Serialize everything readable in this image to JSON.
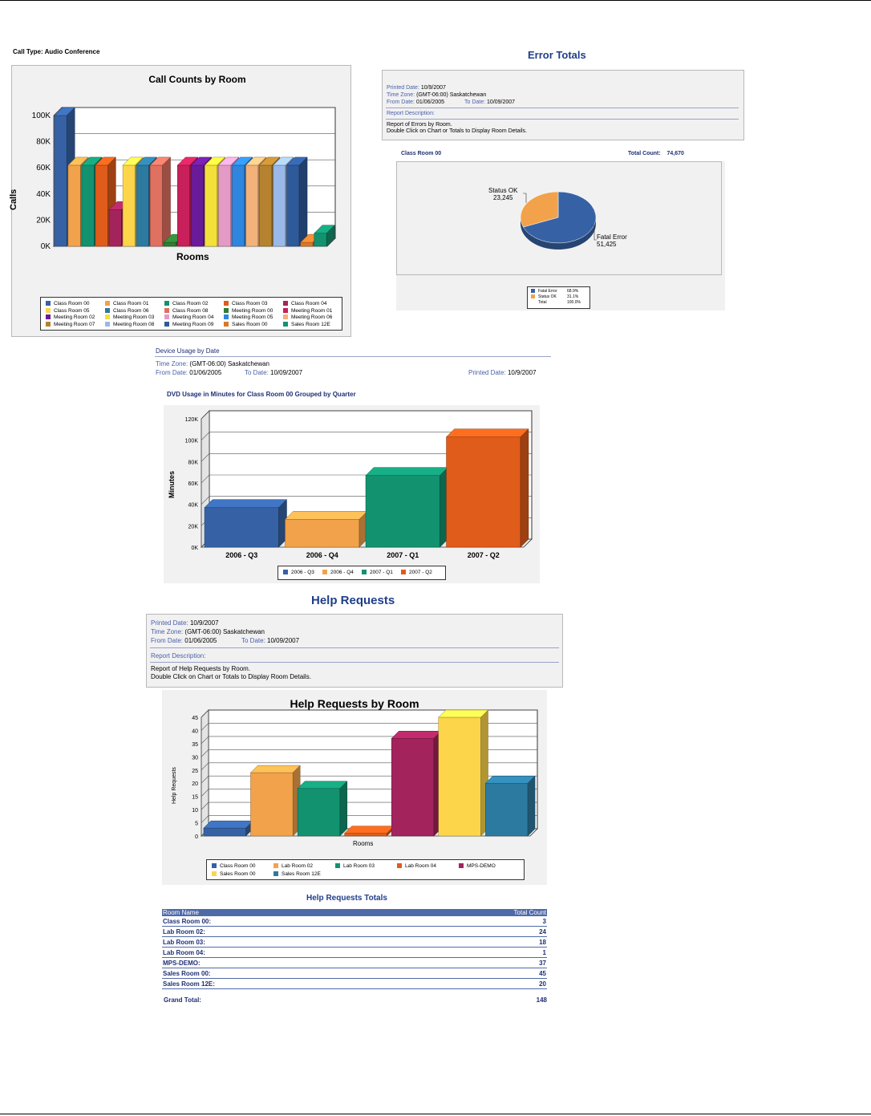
{
  "call_type_label": "Call Type: Audio Conference",
  "chart1": {
    "title": "Call Counts by Room",
    "ylabel": "Calls",
    "xlabel": "Rooms",
    "ticks": [
      "100K",
      "80K",
      "60K",
      "40K",
      "20K",
      "0K"
    ],
    "legend": [
      "Class Room 00",
      "Class Room 01",
      "Class Room 02",
      "Class Room 03",
      "Class Room 04",
      "Class Room 05",
      "Class Room 06",
      "Class Room 08",
      "Meeting Room 00",
      "Meeting Room 01",
      "Meeting Room 02",
      "Meeting Room 03",
      "Meeting Room 04",
      "Meeting Room 05",
      "Meeting Room 06",
      "Meeting Room 07",
      "Meeting Room 08",
      "Meeting Room 09",
      "Sales Room 00",
      "Sales Room 12E"
    ]
  },
  "error_totals": {
    "title": "Error Totals",
    "printed_date_label": "Printed Date:",
    "printed_date": "10/9/2007",
    "time_zone_label": "Time Zone:",
    "time_zone": "(GMT-06:00) Saskatchewan",
    "from_date_label": "From Date:",
    "from_date": "01/06/2005",
    "to_date_label": "To Date:",
    "to_date": "10/09/2007",
    "report_desc_label": "Report Description:",
    "desc1": "Report of Errors by Room.",
    "desc2": "Double Click on Chart or Totals to Display Room Details.",
    "room_label": "Class Room 00",
    "total_count_label": "Total Count:",
    "total_count": "74,670",
    "status_ok_label": "Status OK",
    "status_ok_value": "23,245",
    "fatal_label": "Fatal Error",
    "fatal_value": "51,425",
    "legend": [
      [
        "Fatal Error",
        "68.9%"
      ],
      [
        "Status OK",
        "31.1%"
      ],
      [
        "Total",
        "100.0%"
      ]
    ]
  },
  "device_usage": {
    "title": "Device Usage by Date",
    "time_zone_label": "Time Zone:",
    "time_zone": "(GMT-06:00) Saskatchewan",
    "from_date_label": "From Date:",
    "from_date": "01/06/2005",
    "to_date_label": "To Date:",
    "to_date": "10/09/2007",
    "printed_date_label": "Printed Date:",
    "printed_date": "10/9/2007",
    "subtitle": "DVD Usage in Minutes for Class Room 00  Grouped by Quarter"
  },
  "help_header": {
    "title": "Help Requests",
    "printed_date_label": "Printed Date:",
    "printed_date": "10/9/2007",
    "time_zone_label": "Time Zone:",
    "time_zone": "(GMT-06:00) Saskatchewan",
    "from_date_label": "From Date:",
    "from_date": "01/06/2005",
    "to_date_label": "To Date:",
    "to_date": "10/09/2007",
    "report_desc_label": "Report Description:",
    "desc1": "Report of Help Requests by Room.",
    "desc2": "Double Click on Chart or Totals to Display Room Details."
  },
  "chart_data": [
    {
      "type": "bar",
      "title": "Call Counts by Room",
      "xlabel": "Rooms",
      "ylabel": "Calls",
      "ylim": [
        0,
        100000
      ],
      "categories": [
        "Class Room 00",
        "Class Room 01",
        "Class Room 02",
        "Class Room 03",
        "Class Room 04",
        "Class Room 05",
        "Class Room 06",
        "Class Room 08",
        "Meeting Room 00",
        "Meeting Room 01",
        "Meeting Room 02",
        "Meeting Room 03",
        "Meeting Room 04",
        "Meeting Room 05",
        "Meeting Room 06",
        "Meeting Room 07",
        "Meeting Room 08",
        "Meeting Room 09",
        "Sales Room 00",
        "Sales Room 12E"
      ],
      "values": [
        100000,
        62000,
        62000,
        62000,
        28000,
        62000,
        62000,
        62000,
        3000,
        62000,
        62000,
        62000,
        62000,
        62000,
        62000,
        62000,
        62000,
        62000,
        3000,
        10000
      ],
      "colors": [
        "#3662a5",
        "#f2a24a",
        "#139270",
        "#e05c1a",
        "#a3245c",
        "#fcd54a",
        "#2c7aa0",
        "#e07060",
        "#2f7d32",
        "#c8205a",
        "#6a1b9a",
        "#f4e03a",
        "#e49ac6",
        "#2e86de",
        "#f2b27a",
        "#b5832f",
        "#9ab8e8",
        "#2f5a9a",
        "#d8782a",
        "#139270"
      ]
    },
    {
      "type": "pie",
      "title": "Class Room 00",
      "categories": [
        "Fatal Error",
        "Status OK"
      ],
      "values": [
        51425,
        23245
      ],
      "colors": [
        "#3662a5",
        "#f2a24a"
      ]
    },
    {
      "type": "bar",
      "title": "DVD Usage in Minutes for Class Room 00  Grouped by Quarter",
      "ylabel": "Minutes",
      "ylim": [
        0,
        120000
      ],
      "ticks": [
        "120K",
        "100K",
        "80K",
        "60K",
        "40K",
        "20K",
        "0K"
      ],
      "categories": [
        "2006 - Q3",
        "2006 - Q4",
        "2007 - Q1",
        "2007 - Q2"
      ],
      "values": [
        37000,
        26000,
        67000,
        103000
      ],
      "colors": [
        "#3662a5",
        "#f2a24a",
        "#139270",
        "#e05c1a"
      ]
    },
    {
      "type": "bar",
      "title": "Help Requests by Room",
      "xlabel": "Rooms",
      "ylabel": "Help Requests",
      "ylim": [
        0,
        45
      ],
      "ticks": [
        "45",
        "40",
        "35",
        "30",
        "25",
        "20",
        "15",
        "10",
        "5",
        "0"
      ],
      "categories": [
        "Class Room 00",
        "Lab Room 02",
        "Lab Room 03",
        "Lab Room 04",
        "MPS-DEMO",
        "Sales Room 00",
        "Sales Room 12E"
      ],
      "values": [
        3,
        24,
        18,
        1,
        37,
        45,
        20
      ],
      "colors": [
        "#3662a5",
        "#f2a24a",
        "#139270",
        "#e05c1a",
        "#a3245c",
        "#fcd54a",
        "#2c7aa0"
      ]
    }
  ],
  "help_totals": {
    "title": "Help Requests Totals",
    "col_room": "Room Name",
    "col_count": "Total Count",
    "rows": [
      [
        "Class Room 00:",
        "3"
      ],
      [
        "Lab Room 02:",
        "24"
      ],
      [
        "Lab Room 03:",
        "18"
      ],
      [
        "Lab Room 04:",
        "1"
      ],
      [
        "MPS-DEMO:",
        "37"
      ],
      [
        "Sales Room 00:",
        "45"
      ],
      [
        "Sales Room 12E:",
        "20"
      ]
    ],
    "grand_label": "Grand Total:",
    "grand_value": "148"
  }
}
